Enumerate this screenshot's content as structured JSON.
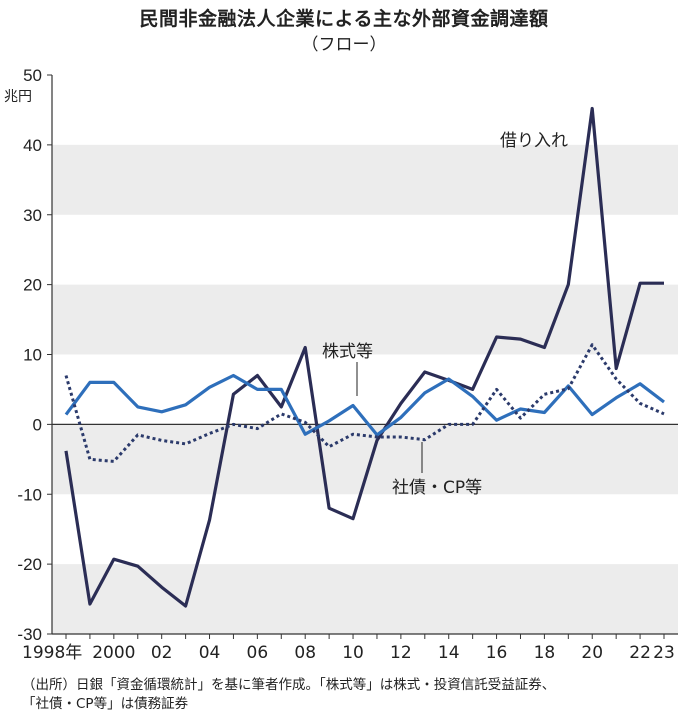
{
  "chart_data": {
    "type": "line",
    "title": "民間非金融法人企業による主な外部資金調達額",
    "subtitle": "（フロー）",
    "ylabel": "兆円",
    "ylim": [
      -30,
      50
    ],
    "yticks": [
      "50",
      "40",
      "30",
      "20",
      "10",
      "0",
      "-10",
      "-20",
      "-30"
    ],
    "xlim": [
      1998,
      2023
    ],
    "xticks": [
      {
        "x": 1998,
        "label": "1998年"
      },
      {
        "x": 2000,
        "label": "2000"
      },
      {
        "x": 2002,
        "label": "02"
      },
      {
        "x": 2004,
        "label": "04"
      },
      {
        "x": 2006,
        "label": "06"
      },
      {
        "x": 2008,
        "label": "08"
      },
      {
        "x": 2010,
        "label": "10"
      },
      {
        "x": 2012,
        "label": "12"
      },
      {
        "x": 2014,
        "label": "14"
      },
      {
        "x": 2016,
        "label": "16"
      },
      {
        "x": 2018,
        "label": "18"
      },
      {
        "x": 2020,
        "label": "20"
      },
      {
        "x": 2022,
        "label": "22"
      },
      {
        "x": 2023,
        "label": "23"
      }
    ],
    "x": [
      1998,
      1999,
      2000,
      2001,
      2002,
      2003,
      2004,
      2005,
      2006,
      2007,
      2008,
      2009,
      2010,
      2011,
      2012,
      2013,
      2014,
      2015,
      2016,
      2017,
      2018,
      2019,
      2020,
      2021,
      2022,
      2023
    ],
    "grid": "horizontal bands",
    "series": [
      {
        "name": "借り入れ",
        "color": "#2b2d55",
        "style": "solid",
        "values": [
          -3.8,
          -25.7,
          -19.3,
          -20.3,
          -23.3,
          -26.0,
          -13.7,
          4.3,
          7.0,
          2.5,
          11.0,
          -12.0,
          -13.5,
          -2.3,
          3.0,
          7.5,
          6.3,
          5.0,
          12.5,
          12.2,
          11.0,
          20.0,
          45.2,
          8.0,
          20.2,
          20.2
        ]
      },
      {
        "name": "株式等",
        "color": "#2e6fbb",
        "style": "solid",
        "values": [
          1.4,
          6.0,
          6.0,
          2.5,
          1.8,
          2.8,
          5.3,
          7.0,
          5.0,
          5.0,
          -1.4,
          0.5,
          2.7,
          -1.5,
          1.0,
          4.5,
          6.5,
          4.0,
          0.6,
          2.2,
          1.7,
          5.5,
          1.4,
          3.8,
          5.8,
          3.2
        ]
      },
      {
        "name": "社債・CP等",
        "color": "#2b3a6b",
        "style": "dotted",
        "values": [
          7.0,
          -5.0,
          -5.3,
          -1.5,
          -2.3,
          -2.8,
          -1.3,
          0.0,
          -0.6,
          1.5,
          0.3,
          -3.2,
          -1.4,
          -1.8,
          -1.8,
          -2.2,
          0.0,
          0.0,
          5.0,
          0.9,
          4.3,
          5.1,
          11.4,
          6.5,
          3.0,
          1.5
        ]
      }
    ],
    "annotations": [
      {
        "text": "借り入れ",
        "series": 0
      },
      {
        "text": "株式等",
        "series": 1
      },
      {
        "text": "社債・CP等",
        "series": 2
      }
    ]
  },
  "source_line1": "（出所）日銀「資金循環統計」を基に筆者作成。「株式等」は株式・投資信託受益証券、",
  "source_line2": "「社債・CP等」は債務証券"
}
